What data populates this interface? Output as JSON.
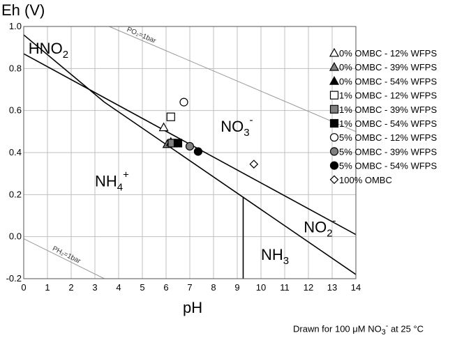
{
  "chart_data": {
    "type": "scatter",
    "title": "",
    "xlabel": "pH",
    "ylabel": "Eh (V)",
    "xlim": [
      0,
      14
    ],
    "ylim": [
      -0.2,
      1.0
    ],
    "xticks": [
      "0",
      "1",
      "2",
      "3",
      "4",
      "5",
      "6",
      "7",
      "8",
      "9",
      "10",
      "11",
      "12",
      "13",
      "14"
    ],
    "yticks": [
      {
        "v": 1.0,
        "label": "1.0"
      },
      {
        "v": 0.8,
        "label": "0.8"
      },
      {
        "v": 0.6,
        "label": "0.6"
      },
      {
        "v": 0.4,
        "label": "0.4"
      },
      {
        "v": 0.2,
        "label": "0.2"
      },
      {
        "v": 0.0,
        "label": "0.0"
      },
      {
        "v": -0.2,
        "label": "-0.2"
      }
    ],
    "grid": true,
    "legend_position": "right",
    "boundaries": [
      {
        "id": "po2-line",
        "label": "PO₂=1bar",
        "points": [
          [
            3.6,
            1.0
          ],
          [
            14,
            0.5
          ]
        ],
        "color": "#999999"
      },
      {
        "id": "ph2-line",
        "label": "PH₂=1bar",
        "points": [
          [
            0,
            -0.01
          ],
          [
            3.4,
            -0.2
          ]
        ],
        "color": "#999999"
      },
      {
        "id": "hno2-no3-line",
        "label": "",
        "points": [
          [
            0,
            0.96
          ],
          [
            3.4,
            0.64
          ]
        ],
        "color": "#000000"
      },
      {
        "id": "nh4-upper-line",
        "label": "",
        "points": [
          [
            0,
            0.87
          ],
          [
            14,
            0.01
          ]
        ],
        "color": "#000000"
      },
      {
        "id": "nh4-lower-line",
        "label": "",
        "points": [
          [
            3.4,
            0.64
          ],
          [
            14,
            -0.18
          ]
        ],
        "color": "#000000"
      },
      {
        "id": "nh3-vertical-line",
        "label": "",
        "points": [
          [
            9.25,
            0.19
          ],
          [
            9.25,
            -0.2
          ]
        ],
        "color": "#000000"
      }
    ],
    "regions": [
      {
        "id": "hno2",
        "main": "HNO",
        "sub": "2",
        "sup": "",
        "x": 0.2,
        "y": 0.87
      },
      {
        "id": "no3",
        "main": "NO",
        "sub": "3",
        "sup": "-",
        "x": 8.3,
        "y": 0.5
      },
      {
        "id": "nh4",
        "main": "NH",
        "sub": "4",
        "sup": "+",
        "x": 3.0,
        "y": 0.24
      },
      {
        "id": "no2",
        "main": "NO",
        "sub": "2",
        "sup": "-",
        "x": 11.8,
        "y": 0.02
      },
      {
        "id": "nh3",
        "main": "NH",
        "sub": "3",
        "sup": "",
        "x": 10.0,
        "y": -0.11
      }
    ],
    "series": [
      {
        "name": "0% OMBC - 12% WFPS",
        "marker": "triangle",
        "fill": "#ffffff",
        "points": [
          [
            5.9,
            0.52
          ]
        ]
      },
      {
        "name": "0% OMBC - 39% WFPS",
        "marker": "triangle",
        "fill": "#808080",
        "points": [
          [
            6.05,
            0.44
          ]
        ]
      },
      {
        "name": "0% OMBC - 54% WFPS",
        "marker": "triangle",
        "fill": "#000000",
        "points": [
          [
            6.2,
            0.45
          ]
        ]
      },
      {
        "name": "1% OMBC - 12% WFPS",
        "marker": "square",
        "fill": "#ffffff",
        "points": [
          [
            6.2,
            0.57
          ]
        ]
      },
      {
        "name": "1% OMBC - 39% WFPS",
        "marker": "square",
        "fill": "#808080",
        "points": [
          [
            6.25,
            0.445
          ]
        ]
      },
      {
        "name": "1% OMBC - 54% WFPS",
        "marker": "square",
        "fill": "#000000",
        "points": [
          [
            6.5,
            0.445
          ]
        ]
      },
      {
        "name": "5% OMBC - 12% WFPS",
        "marker": "circle",
        "fill": "#ffffff",
        "points": [
          [
            6.75,
            0.64
          ]
        ]
      },
      {
        "name": "5% OMBC - 39% WFPS",
        "marker": "circle",
        "fill": "#808080",
        "points": [
          [
            7.0,
            0.43
          ]
        ]
      },
      {
        "name": "5% OMBC - 54% WFPS",
        "marker": "circle",
        "fill": "#000000",
        "points": [
          [
            7.35,
            0.405
          ]
        ]
      },
      {
        "name": "100% OMBC",
        "marker": "diamond",
        "fill": "#ffffff",
        "points": [
          [
            9.7,
            0.345
          ]
        ]
      }
    ]
  },
  "caption": {
    "prefix": "Drawn for 100 μM NO",
    "sub": "3",
    "sup": "-",
    "suffix": " at 25 °C"
  }
}
